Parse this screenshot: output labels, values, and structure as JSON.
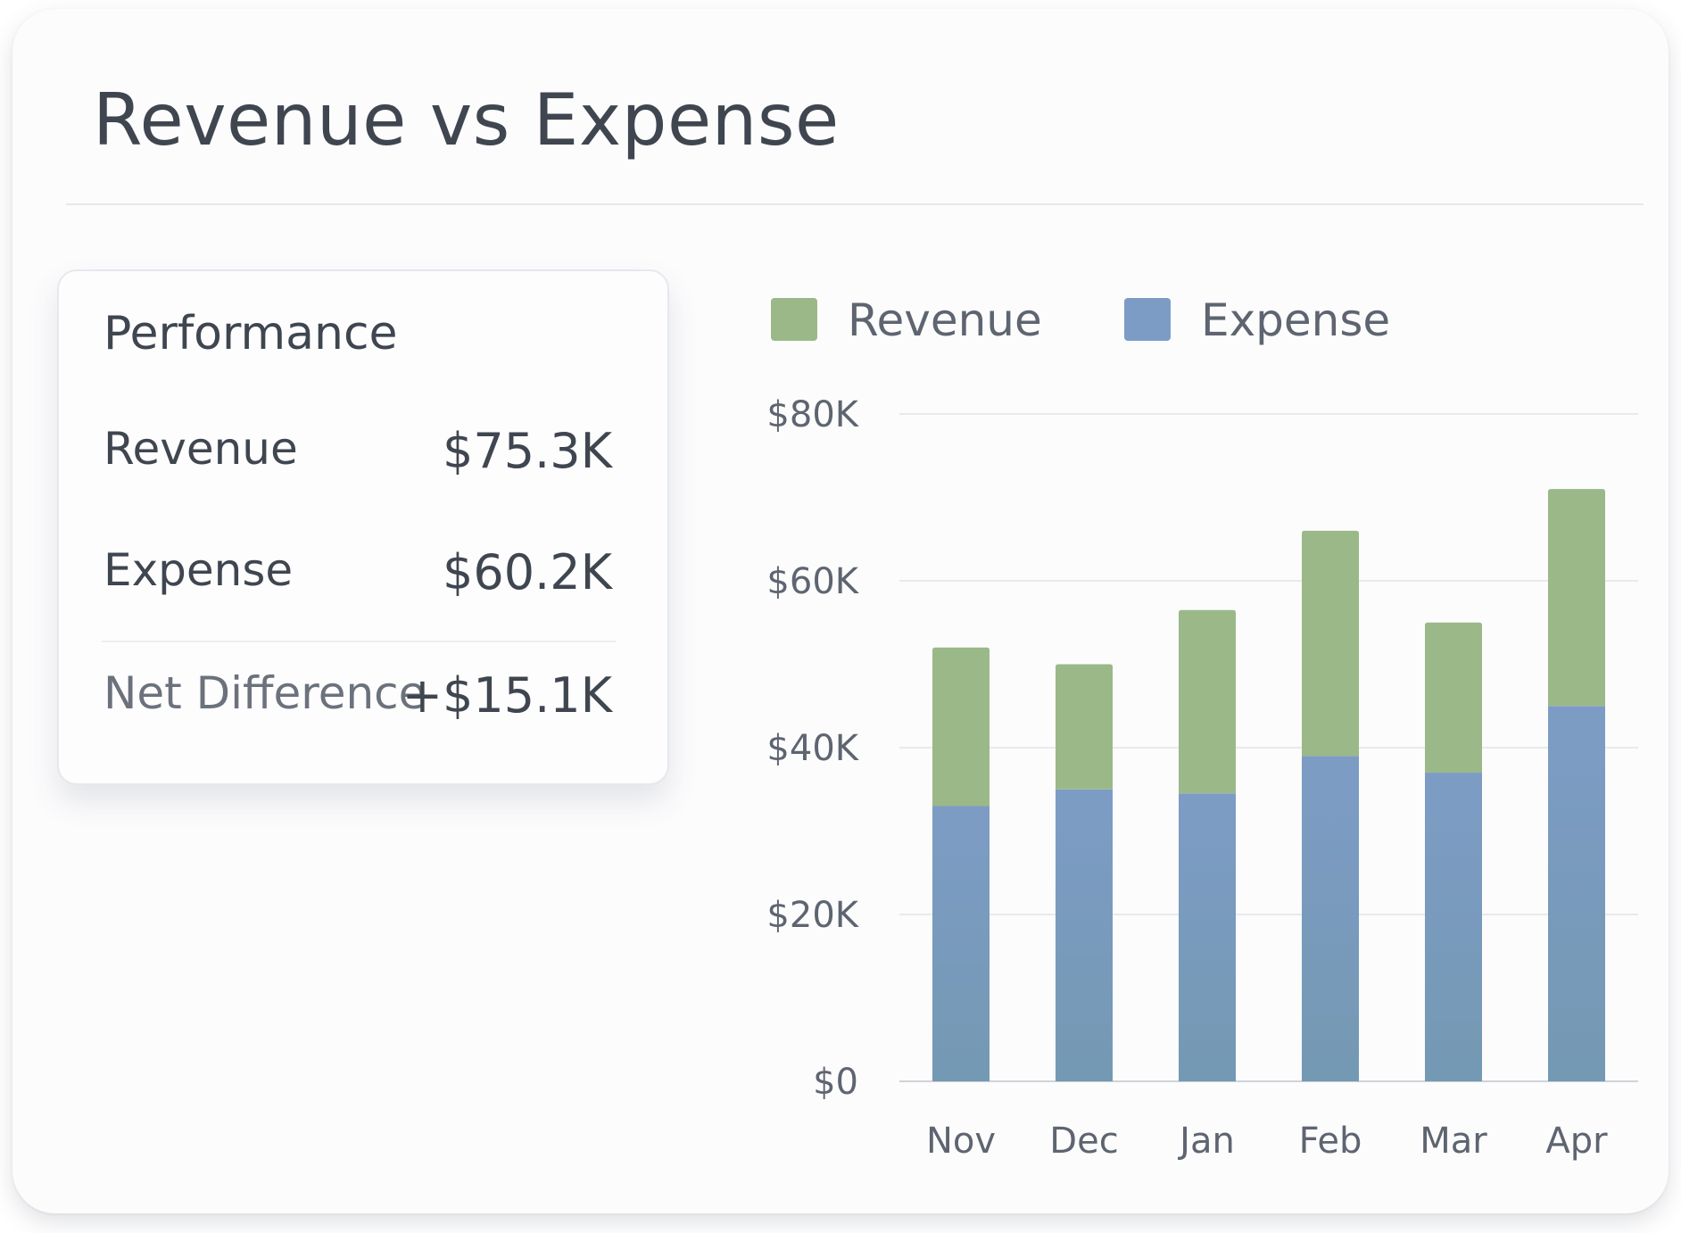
{
  "card": {
    "title": "Revenue vs Expense"
  },
  "performance": {
    "title": "Performance",
    "rows": [
      {
        "label": "Revenue",
        "value": "$75.3K"
      },
      {
        "label": "Expense",
        "value": "$60.2K"
      },
      {
        "label": "Net Difference",
        "value": "+$15.1K"
      }
    ]
  },
  "colors": {
    "revenue": "#9bb889",
    "expense": "#7d9cc5",
    "expense_base": "#7499b3",
    "grid": "#e8eaed",
    "axis_text": "#5e6570"
  },
  "chart_data": {
    "type": "bar",
    "stacked": true,
    "categories": [
      "Nov",
      "Dec",
      "Jan",
      "Feb",
      "Mar",
      "Apr"
    ],
    "series": [
      {
        "name": "Expense",
        "values": [
          33,
          35,
          34.5,
          39,
          37,
          45
        ]
      },
      {
        "name": "Revenue",
        "values": [
          19,
          15,
          22,
          27,
          18,
          26
        ]
      }
    ],
    "ylim": [
      0,
      80
    ],
    "yticks": [
      0,
      20,
      40,
      60,
      80
    ],
    "ytick_labels": [
      "$0",
      "$20K",
      "$40K",
      "$60K",
      "$80K"
    ],
    "legend": [
      "Revenue",
      "Expense"
    ],
    "legend_position": "top",
    "grid": true,
    "title": "",
    "xlabel": "",
    "ylabel": ""
  }
}
